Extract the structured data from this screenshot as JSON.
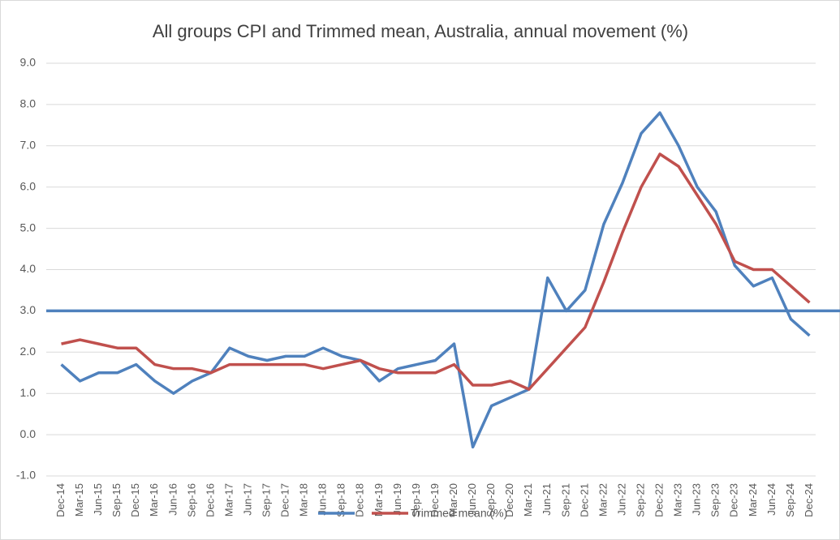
{
  "chart_data": {
    "type": "line",
    "title": "All groups CPI and Trimmed mean, Australia, annual movement (%)",
    "categories": [
      "Dec-14",
      "Mar-15",
      "Jun-15",
      "Sep-15",
      "Dec-15",
      "Mar-16",
      "Jun-16",
      "Sep-16",
      "Dec-16",
      "Mar-17",
      "Jun-17",
      "Sep-17",
      "Dec-17",
      "Mar-18",
      "Jun-18",
      "Sep-18",
      "Dec-18",
      "Mar-19",
      "Jun-19",
      "Sep-19",
      "Dec-19",
      "Mar-20",
      "Jun-20",
      "Sep-20",
      "Dec-20",
      "Mar-21",
      "Jun-21",
      "Sep-21",
      "Dec-21",
      "Mar-22",
      "Jun-22",
      "Sep-22",
      "Dec-22",
      "Mar-23",
      "Jun-23",
      "Sep-23",
      "Dec-23",
      "Mar-24",
      "Jun-24",
      "Sep-24",
      "Dec-24"
    ],
    "series": [
      {
        "name": null,
        "color": "#4f81bd",
        "values": [
          1.7,
          1.3,
          1.5,
          1.5,
          1.7,
          1.3,
          1.0,
          1.3,
          1.5,
          2.1,
          1.9,
          1.8,
          1.9,
          1.9,
          2.1,
          1.9,
          1.8,
          1.3,
          1.6,
          1.7,
          1.8,
          2.2,
          -0.3,
          0.7,
          0.9,
          1.1,
          3.8,
          3.0,
          3.5,
          5.1,
          6.1,
          7.3,
          7.8,
          7.0,
          6.0,
          5.4,
          4.1,
          3.6,
          3.8,
          2.8,
          2.4
        ]
      },
      {
        "name": "Trimmed mean (%)",
        "color": "#c0504d",
        "values": [
          2.2,
          2.3,
          2.2,
          2.1,
          2.1,
          1.7,
          1.6,
          1.6,
          1.5,
          1.7,
          1.7,
          1.7,
          1.7,
          1.7,
          1.6,
          1.7,
          1.8,
          1.6,
          1.5,
          1.5,
          1.5,
          1.7,
          1.2,
          1.2,
          1.3,
          1.1,
          1.6,
          2.1,
          2.6,
          3.7,
          4.9,
          6.0,
          6.8,
          6.5,
          5.8,
          5.1,
          4.2,
          4.0,
          4.0,
          3.6,
          3.2
        ]
      }
    ],
    "reference_line": {
      "value": 3,
      "color": "#4f81bd"
    },
    "ylim": [
      -1,
      9
    ],
    "yticks": [
      {
        "value": -1,
        "label": "-1.0"
      },
      {
        "value": 0,
        "label": "0.0"
      },
      {
        "value": 1,
        "label": "1.0"
      },
      {
        "value": 2,
        "label": "2.0"
      },
      {
        "value": 3,
        "label": "3.0"
      },
      {
        "value": 4,
        "label": "4.0"
      },
      {
        "value": 5,
        "label": "5.0"
      },
      {
        "value": 6,
        "label": "6.0"
      },
      {
        "value": 7,
        "label": "7.0"
      },
      {
        "value": 8,
        "label": "8.0"
      },
      {
        "value": 9,
        "label": "9.0"
      }
    ],
    "grid": true
  }
}
